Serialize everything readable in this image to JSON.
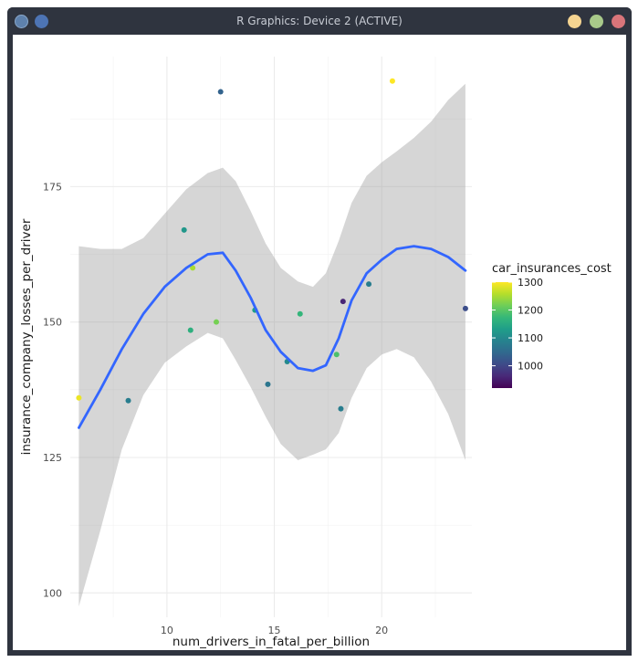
{
  "window": {
    "title": "R Graphics: Device 2 (ACTIVE)",
    "buttons": {
      "app": "r-app-icon",
      "pin": "pin-icon",
      "minimize": "minimize-icon",
      "maximize": "maximize-icon",
      "close": "close-icon"
    },
    "button_colors": {
      "minimize": "#f5d491",
      "maximize": "#a8c98a",
      "close": "#d9757a"
    }
  },
  "chart_data": {
    "type": "scatter",
    "title": "",
    "xlabel": "num_drivers_in_fatal_per_billion",
    "ylabel": "insurance_company_losses_per_driver",
    "xlim": [
      5.5,
      24.2
    ],
    "ylim": [
      95.5,
      199.0
    ],
    "xticks": [
      10,
      15,
      20
    ],
    "yticks": [
      100,
      125,
      150,
      175
    ],
    "grid": true,
    "theme": "minimal",
    "color_scale": {
      "title": "car_insurances_cost",
      "palette": "viridis",
      "min": 920,
      "max": 1300,
      "ticks": [
        1000,
        1100,
        1200,
        1300
      ]
    },
    "points": [
      {
        "x": 5.9,
        "y": 136,
        "c": 1290
      },
      {
        "x": 8.2,
        "y": 135.5,
        "c": 1080
      },
      {
        "x": 10.8,
        "y": 167,
        "c": 1120
      },
      {
        "x": 11.1,
        "y": 148.5,
        "c": 1160
      },
      {
        "x": 11.2,
        "y": 160,
        "c": 1250
      },
      {
        "x": 12.3,
        "y": 150,
        "c": 1220
      },
      {
        "x": 12.5,
        "y": 192.5,
        "c": 1040
      },
      {
        "x": 14.1,
        "y": 152.2,
        "c": 1130
      },
      {
        "x": 14.7,
        "y": 138.5,
        "c": 1070
      },
      {
        "x": 15.6,
        "y": 142.7,
        "c": 1100
      },
      {
        "x": 16.2,
        "y": 151.5,
        "c": 1170
      },
      {
        "x": 17.9,
        "y": 144,
        "c": 1190
      },
      {
        "x": 18.1,
        "y": 134,
        "c": 1080
      },
      {
        "x": 18.2,
        "y": 153.8,
        "c": 960
      },
      {
        "x": 19.4,
        "y": 157,
        "c": 1080
      },
      {
        "x": 20.5,
        "y": 194.5,
        "c": 1300
      },
      {
        "x": 23.9,
        "y": 152.5,
        "c": 1010
      }
    ],
    "smooth": {
      "method": "loess",
      "color": "#3366ff",
      "fit": [
        [
          5.9,
          130.5
        ],
        [
          6.9,
          137.5
        ],
        [
          7.9,
          145
        ],
        [
          8.9,
          151.5
        ],
        [
          9.9,
          156.5
        ],
        [
          10.9,
          160
        ],
        [
          11.9,
          162.5
        ],
        [
          12.6,
          162.8
        ],
        [
          13.2,
          159.5
        ],
        [
          13.9,
          154.5
        ],
        [
          14.6,
          148.5
        ],
        [
          15.3,
          144.5
        ],
        [
          16.1,
          141.5
        ],
        [
          16.8,
          141
        ],
        [
          17.4,
          142
        ],
        [
          18.0,
          147
        ],
        [
          18.6,
          154
        ],
        [
          19.3,
          159
        ],
        [
          20.0,
          161.5
        ],
        [
          20.7,
          163.5
        ],
        [
          21.5,
          164
        ],
        [
          22.3,
          163.5
        ],
        [
          23.1,
          162
        ],
        [
          23.9,
          159.5
        ]
      ],
      "upper": [
        [
          5.9,
          164
        ],
        [
          6.9,
          163.5
        ],
        [
          7.9,
          163.5
        ],
        [
          8.9,
          165.5
        ],
        [
          9.9,
          170
        ],
        [
          10.9,
          174.5
        ],
        [
          11.9,
          177.5
        ],
        [
          12.6,
          178.5
        ],
        [
          13.2,
          176
        ],
        [
          13.9,
          170.5
        ],
        [
          14.6,
          164.5
        ],
        [
          15.3,
          160
        ],
        [
          16.1,
          157.5
        ],
        [
          16.8,
          156.5
        ],
        [
          17.4,
          159
        ],
        [
          18.0,
          165
        ],
        [
          18.6,
          172
        ],
        [
          19.3,
          177
        ],
        [
          20.0,
          179.5
        ],
        [
          20.7,
          181.5
        ],
        [
          21.5,
          184
        ],
        [
          22.3,
          187
        ],
        [
          23.1,
          191
        ],
        [
          23.9,
          194
        ]
      ],
      "lower": [
        [
          5.9,
          97.5
        ],
        [
          6.9,
          111.5
        ],
        [
          7.9,
          126.5
        ],
        [
          8.9,
          136.5
        ],
        [
          9.9,
          142.5
        ],
        [
          10.9,
          145.5
        ],
        [
          11.9,
          148
        ],
        [
          12.6,
          147
        ],
        [
          13.2,
          143
        ],
        [
          13.9,
          138
        ],
        [
          14.6,
          132.5
        ],
        [
          15.3,
          127.5
        ],
        [
          16.1,
          124.5
        ],
        [
          16.8,
          125.5
        ],
        [
          17.4,
          126.5
        ],
        [
          18.0,
          129.5
        ],
        [
          18.6,
          136
        ],
        [
          19.3,
          141.5
        ],
        [
          20.0,
          144
        ],
        [
          20.7,
          145
        ],
        [
          21.5,
          143.5
        ],
        [
          22.3,
          139
        ],
        [
          23.1,
          133
        ],
        [
          23.9,
          124.5
        ]
      ]
    }
  }
}
